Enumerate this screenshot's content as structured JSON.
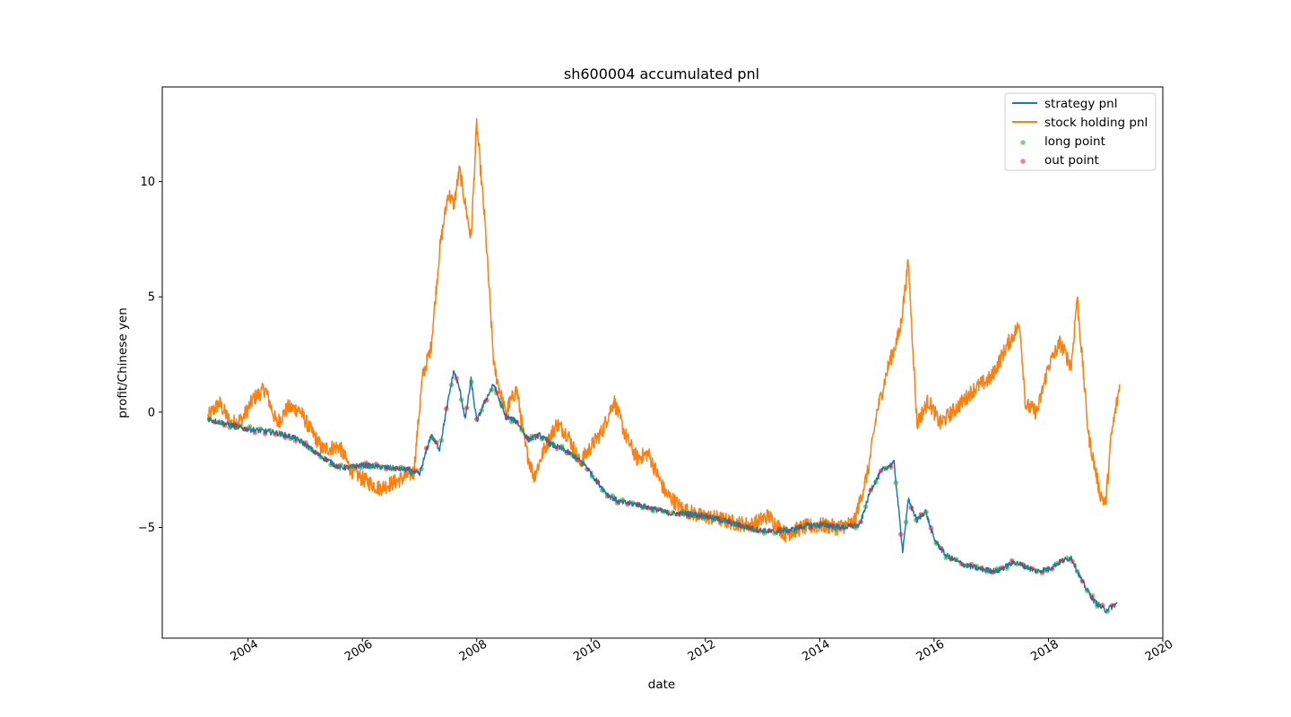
{
  "chart_data": {
    "type": "line",
    "title": "sh600004 accumulated pnl",
    "xlabel": "date",
    "ylabel": "profit/Chinese yen",
    "xlim": [
      2002.5,
      2020.0
    ],
    "ylim": [
      -9.8,
      14.1
    ],
    "x_ticks": [
      2004,
      2006,
      2008,
      2010,
      2012,
      2014,
      2016,
      2018,
      2020
    ],
    "x_tick_labels": [
      "2004",
      "2006",
      "2008",
      "2010",
      "2012",
      "2014",
      "2016",
      "2018",
      "2020"
    ],
    "y_ticks": [
      -5,
      0,
      5,
      10
    ],
    "y_tick_labels": [
      "−5",
      "0",
      "5",
      "10"
    ],
    "legend_position": "top-right",
    "grid": false,
    "series": [
      {
        "name": "strategy pnl",
        "color": "#1f77b4",
        "x": [
          2003.3,
          2003.6,
          2003.9,
          2004.2,
          2004.5,
          2004.8,
          2005.0,
          2005.2,
          2005.4,
          2005.6,
          2005.8,
          2006.0,
          2006.4,
          2006.8,
          2007.0,
          2007.2,
          2007.35,
          2007.5,
          2007.6,
          2007.7,
          2007.8,
          2007.9,
          2008.0,
          2008.15,
          2008.3,
          2008.5,
          2008.7,
          2008.9,
          2009.1,
          2009.3,
          2009.5,
          2009.7,
          2009.9,
          2010.1,
          2010.3,
          2010.5,
          2010.8,
          2011.1,
          2011.4,
          2011.7,
          2012.0,
          2012.3,
          2012.6,
          2012.9,
          2013.2,
          2013.5,
          2013.8,
          2014.1,
          2014.4,
          2014.7,
          2014.9,
          2015.1,
          2015.3,
          2015.45,
          2015.55,
          2015.7,
          2015.85,
          2016.0,
          2016.2,
          2016.5,
          2016.8,
          2017.1,
          2017.4,
          2017.6,
          2017.8,
          2018.0,
          2018.2,
          2018.4,
          2018.6,
          2018.8,
          2019.0,
          2019.2
        ],
        "y": [
          -0.3,
          -0.5,
          -0.7,
          -0.8,
          -0.9,
          -1.1,
          -1.4,
          -1.8,
          -2.1,
          -2.4,
          -2.4,
          -2.3,
          -2.4,
          -2.5,
          -2.7,
          -1.0,
          -1.6,
          0.5,
          1.8,
          1.0,
          -0.3,
          1.4,
          -0.4,
          0.5,
          1.2,
          -0.2,
          -0.4,
          -1.2,
          -1.0,
          -1.4,
          -1.6,
          -1.9,
          -2.3,
          -3.0,
          -3.6,
          -3.9,
          -4.0,
          -4.2,
          -4.4,
          -4.4,
          -4.5,
          -4.7,
          -4.9,
          -5.1,
          -5.2,
          -5.1,
          -4.9,
          -4.9,
          -5.0,
          -4.9,
          -3.3,
          -2.5,
          -2.2,
          -6.0,
          -3.8,
          -4.7,
          -4.3,
          -5.5,
          -6.2,
          -6.6,
          -6.8,
          -6.9,
          -6.5,
          -6.7,
          -6.9,
          -6.8,
          -6.5,
          -6.3,
          -7.4,
          -8.2,
          -8.6,
          -8.3
        ]
      },
      {
        "name": "stock holding pnl",
        "color": "#ff7f0e",
        "x": [
          2003.3,
          2003.5,
          2003.7,
          2003.9,
          2004.1,
          2004.3,
          2004.5,
          2004.7,
          2004.9,
          2005.1,
          2005.3,
          2005.6,
          2005.8,
          2006.0,
          2006.3,
          2006.6,
          2006.9,
          2007.05,
          2007.2,
          2007.35,
          2007.5,
          2007.6,
          2007.7,
          2007.8,
          2007.9,
          2008.0,
          2008.15,
          2008.3,
          2008.5,
          2008.7,
          2008.85,
          2009.0,
          2009.2,
          2009.4,
          2009.6,
          2009.8,
          2010.0,
          2010.2,
          2010.4,
          2010.6,
          2010.8,
          2011.0,
          2011.3,
          2011.6,
          2011.9,
          2012.2,
          2012.5,
          2012.8,
          2013.1,
          2013.4,
          2013.7,
          2014.0,
          2014.3,
          2014.6,
          2014.85,
          2015.0,
          2015.2,
          2015.4,
          2015.55,
          2015.7,
          2015.9,
          2016.1,
          2016.4,
          2016.7,
          2017.0,
          2017.3,
          2017.5,
          2017.6,
          2017.8,
          2018.0,
          2018.2,
          2018.4,
          2018.5,
          2018.7,
          2018.9,
          2019.0,
          2019.1,
          2019.25
        ],
        "y": [
          -0.2,
          0.4,
          -0.5,
          -0.3,
          0.6,
          1.0,
          -0.5,
          0.2,
          0.1,
          -0.8,
          -1.6,
          -1.5,
          -2.5,
          -2.9,
          -3.3,
          -3.0,
          -2.6,
          1.5,
          2.8,
          7.0,
          9.5,
          9.0,
          10.5,
          9.0,
          7.5,
          12.5,
          8.0,
          2.0,
          0.0,
          1.0,
          -1.5,
          -2.8,
          -1.5,
          -0.5,
          -1.0,
          -2.2,
          -1.5,
          -0.8,
          0.5,
          -1.0,
          -2.0,
          -1.8,
          -3.5,
          -4.2,
          -4.5,
          -4.6,
          -4.8,
          -4.9,
          -4.5,
          -5.3,
          -5.0,
          -4.9,
          -5.0,
          -4.8,
          -2.5,
          0.0,
          2.0,
          3.5,
          6.5,
          -0.5,
          0.5,
          -0.5,
          0.2,
          1.0,
          1.5,
          3.0,
          3.8,
          0.3,
          0.0,
          2.0,
          3.0,
          2.0,
          5.0,
          -1.0,
          -3.5,
          -4.0,
          -1.0,
          1.2
        ]
      }
    ],
    "markers": [
      {
        "name": "long point",
        "color": "#2ca02c"
      },
      {
        "name": "out point",
        "color": "#d62728"
      }
    ]
  }
}
